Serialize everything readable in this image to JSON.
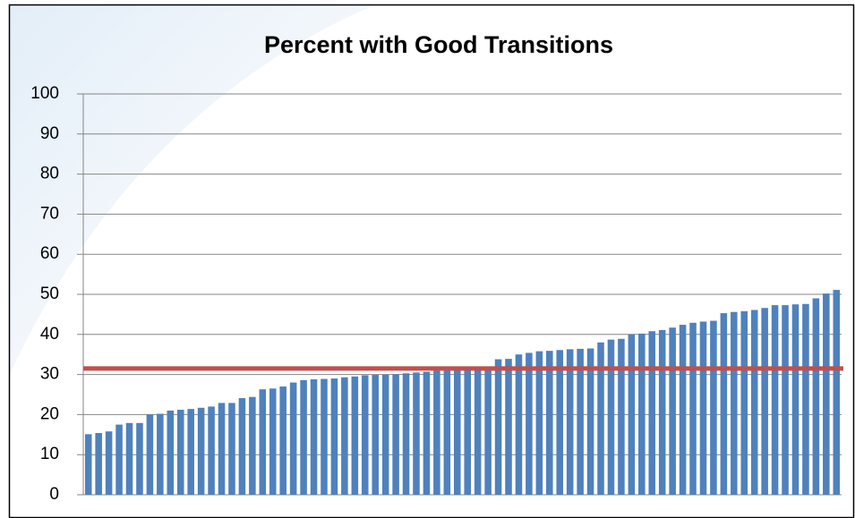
{
  "chart_data": {
    "type": "bar",
    "title": "Percent with Good Transitions",
    "categories": [
      null,
      null,
      null,
      null,
      null,
      null,
      null,
      null,
      null,
      null,
      null,
      null,
      null,
      null,
      null,
      null,
      null,
      null,
      null,
      null,
      null,
      null,
      null,
      null,
      null,
      null,
      null,
      null,
      null,
      null,
      null,
      null,
      null,
      null,
      null,
      null,
      null,
      null,
      null,
      null,
      null,
      null,
      null,
      null,
      null,
      null,
      null,
      null,
      null,
      null,
      null,
      null,
      null,
      null,
      null,
      null,
      null,
      null,
      null,
      null,
      null,
      null,
      null,
      null,
      null,
      null,
      null,
      null,
      null,
      null,
      null,
      null,
      null,
      null
    ],
    "values": [
      15.1,
      15.4,
      15.8,
      17.5,
      17.9,
      17.9,
      20,
      20.2,
      21,
      21.2,
      21.4,
      21.7,
      22,
      22.9,
      22.9,
      24.1,
      24.4,
      26.3,
      26.5,
      27,
      28,
      28.6,
      28.8,
      28.9,
      29,
      29.3,
      29.5,
      29.8,
      29.9,
      30,
      30.1,
      30.3,
      30.5,
      30.7,
      31,
      31,
      31.2,
      31.3,
      31.5,
      31.6,
      33.8,
      33.9,
      35,
      35.4,
      35.8,
      35.9,
      36.1,
      36.3,
      36.4,
      36.5,
      38,
      38.7,
      38.9,
      40,
      40.2,
      40.8,
      41.1,
      41.7,
      42.4,
      42.9,
      43.2,
      43.4,
      45.3,
      45.6,
      45.8,
      46.1,
      46.6,
      47.3,
      47.3,
      47.5,
      47.6,
      49,
      50.2,
      51.1
    ],
    "color": "#4f81bd",
    "reference_line": {
      "value": 31.5,
      "color": "#c0504d"
    },
    "ylim": [
      0,
      100
    ],
    "yticks": [
      0,
      10,
      20,
      30,
      40,
      50,
      60,
      70,
      80,
      90,
      100
    ],
    "grid": true
  }
}
